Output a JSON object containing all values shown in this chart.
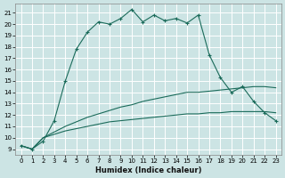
{
  "title": "",
  "xlabel": "Humidex (Indice chaleur)",
  "bg_color": "#cce4e4",
  "grid_color": "#b0d0d0",
  "line_color": "#1a6b5a",
  "xlim": [
    -0.5,
    23.5
  ],
  "ylim": [
    8.5,
    21.8
  ],
  "xticks": [
    0,
    1,
    2,
    3,
    4,
    5,
    6,
    7,
    8,
    9,
    10,
    11,
    12,
    13,
    14,
    15,
    16,
    17,
    18,
    19,
    20,
    21,
    22,
    23
  ],
  "yticks": [
    9,
    10,
    11,
    12,
    13,
    14,
    15,
    16,
    17,
    18,
    19,
    20,
    21
  ],
  "line1_x": [
    0,
    1,
    2,
    3,
    4,
    5,
    6,
    7,
    8,
    9,
    10,
    11,
    12,
    13,
    14,
    15,
    16,
    17,
    18,
    19,
    20,
    21,
    22,
    23
  ],
  "line1_y": [
    9.3,
    9.0,
    10.0,
    10.3,
    10.6,
    10.8,
    11.0,
    11.2,
    11.4,
    11.5,
    11.6,
    11.7,
    11.8,
    11.9,
    12.0,
    12.1,
    12.1,
    12.2,
    12.2,
    12.3,
    12.3,
    12.3,
    12.3,
    12.2
  ],
  "line2_x": [
    0,
    1,
    2,
    3,
    4,
    5,
    6,
    7,
    8,
    9,
    10,
    11,
    12,
    13,
    14,
    15,
    16,
    17,
    18,
    19,
    20,
    21,
    22,
    23
  ],
  "line2_y": [
    9.3,
    9.0,
    10.0,
    10.5,
    11.0,
    11.4,
    11.8,
    12.1,
    12.4,
    12.7,
    12.9,
    13.2,
    13.4,
    13.6,
    13.8,
    14.0,
    14.0,
    14.1,
    14.2,
    14.3,
    14.4,
    14.5,
    14.5,
    14.4
  ],
  "line3_x": [
    0,
    1,
    2,
    3,
    4,
    5,
    6,
    7,
    8,
    9,
    10,
    11,
    12,
    13,
    14,
    15,
    16,
    17,
    18,
    19,
    20,
    21,
    22,
    23
  ],
  "line3_y": [
    9.3,
    9.0,
    9.7,
    11.5,
    15.0,
    17.8,
    19.3,
    20.2,
    20.0,
    20.5,
    21.3,
    20.2,
    20.8,
    20.3,
    20.5,
    20.1,
    20.8,
    17.3,
    15.3,
    14.0,
    14.5,
    13.2,
    12.2,
    11.5
  ]
}
